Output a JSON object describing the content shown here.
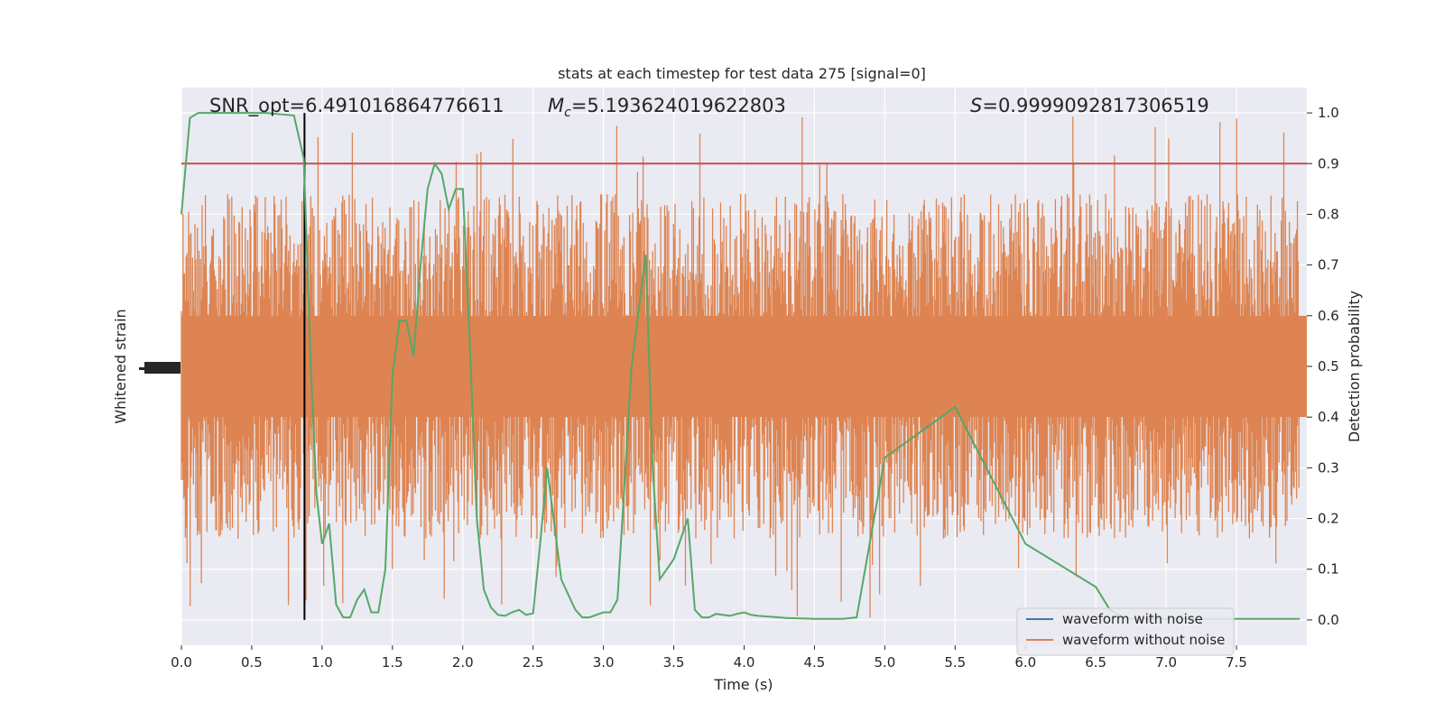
{
  "chart_data": {
    "type": "line",
    "title": "stats at each timestep for test data 275 [signal=0]",
    "xlabel": "Time (s)",
    "ylabel_left": "Whitened strain",
    "ylabel_right": "Detection probability",
    "xlim": [
      0.0,
      8.0
    ],
    "ylim_right": [
      -0.05,
      1.05
    ],
    "x_ticks": [
      "0.0",
      "0.5",
      "1.0",
      "1.5",
      "2.0",
      "2.5",
      "3.0",
      "3.5",
      "4.0",
      "4.5",
      "5.0",
      "5.5",
      "6.0",
      "6.5",
      "7.0",
      "7.5"
    ],
    "x_tick_values": [
      0.0,
      0.5,
      1.0,
      1.5,
      2.0,
      2.5,
      3.0,
      3.5,
      4.0,
      4.5,
      5.0,
      5.5,
      6.0,
      6.5,
      7.0,
      7.5
    ],
    "y_right_ticks": [
      "0.0",
      "0.1",
      "0.2",
      "0.3",
      "0.4",
      "0.5",
      "0.6",
      "0.7",
      "0.8",
      "0.9",
      "1.0"
    ],
    "y_right_tick_values": [
      0.0,
      0.1,
      0.2,
      0.3,
      0.4,
      0.5,
      0.6,
      0.7,
      0.8,
      0.9,
      1.0
    ],
    "grid": true,
    "legend_position": "bottom-right",
    "annotations": {
      "snr": "SNR_opt=6.491016864776611",
      "mc_symbol": "M",
      "mc_subscript": "c",
      "mc_value": "=5.193624019622803",
      "s_symbol": "S",
      "s_value": "=0.9999092817306519"
    },
    "threshold": 0.9,
    "vertical_marker_time": 0.875,
    "series": [
      {
        "name": "waveform with noise",
        "color": "#4c72b0"
      },
      {
        "name": "waveform without noise",
        "color": "#dd8452",
        "strain_band_probability_equivalent": {
          "typical_low": 0.3,
          "typical_high": 0.7,
          "max": 1.0,
          "min": 0.0
        }
      },
      {
        "color": "#55a868",
        "x": [
          0.0,
          0.06,
          0.12,
          0.25,
          0.5,
          0.6,
          0.8,
          0.87,
          0.92,
          0.96,
          1.0,
          1.05,
          1.1,
          1.15,
          1.2,
          1.25,
          1.3,
          1.35,
          1.4,
          1.45,
          1.5,
          1.55,
          1.6,
          1.65,
          1.7,
          1.75,
          1.8,
          1.85,
          1.9,
          1.95,
          2.0,
          2.05,
          2.1,
          2.15,
          2.2,
          2.25,
          2.3,
          2.35,
          2.4,
          2.45,
          2.5,
          2.55,
          2.6,
          2.7,
          2.8,
          2.85,
          2.9,
          2.95,
          3.0,
          3.05,
          3.1,
          3.2,
          3.3,
          3.35,
          3.4,
          3.5,
          3.6,
          3.65,
          3.7,
          3.75,
          3.8,
          3.85,
          3.9,
          3.95,
          4.0,
          4.05,
          4.1,
          4.2,
          4.3,
          4.4,
          4.5,
          4.6,
          4.7,
          4.8,
          5.0,
          5.5,
          6.0,
          6.5,
          6.6,
          6.7,
          6.75,
          6.8,
          6.85,
          6.9,
          6.95,
          7.0,
          7.5,
          7.95
        ],
        "values": [
          0.8,
          0.99,
          1.0,
          1.0,
          1.0,
          1.0,
          0.995,
          0.91,
          0.5,
          0.25,
          0.15,
          0.19,
          0.03,
          0.005,
          0.005,
          0.04,
          0.06,
          0.015,
          0.015,
          0.1,
          0.48,
          0.59,
          0.59,
          0.52,
          0.7,
          0.85,
          0.9,
          0.88,
          0.81,
          0.85,
          0.85,
          0.55,
          0.2,
          0.06,
          0.025,
          0.01,
          0.008,
          0.015,
          0.02,
          0.01,
          0.013,
          0.15,
          0.3,
          0.08,
          0.02,
          0.005,
          0.005,
          0.01,
          0.015,
          0.015,
          0.04,
          0.5,
          0.72,
          0.3,
          0.08,
          0.12,
          0.2,
          0.02,
          0.005,
          0.005,
          0.012,
          0.01,
          0.008,
          0.012,
          0.015,
          0.01,
          0.008,
          0.006,
          0.004,
          0.003,
          0.002,
          0.002,
          0.002,
          0.005,
          0.32,
          0.42,
          0.15,
          0.065,
          0.02,
          0.005,
          0.002,
          0.002,
          0.002,
          0.002,
          0.002,
          0.002,
          0.002,
          0.002
        ]
      }
    ],
    "left_axis_ticks_note": ""
  }
}
